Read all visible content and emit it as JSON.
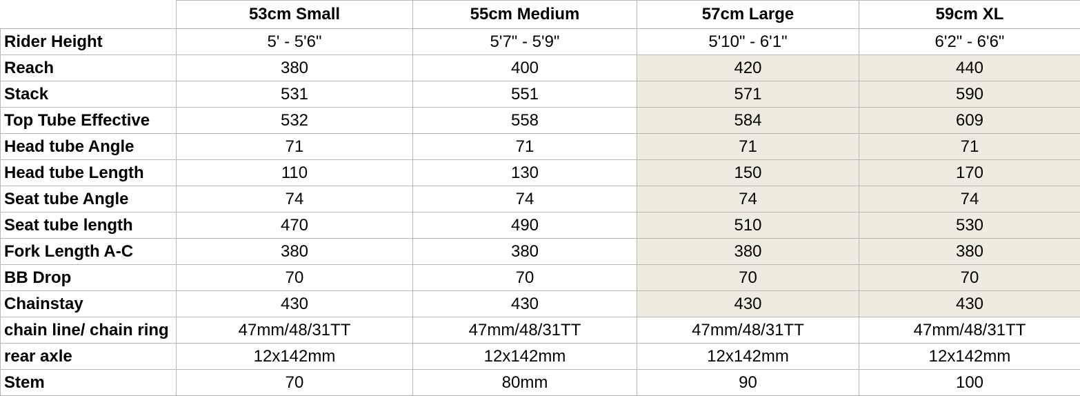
{
  "columns": [
    "",
    "53cm  Small",
    "55cm Medium",
    "57cm  Large",
    "59cm XL"
  ],
  "rows": [
    {
      "label": "Rider Height",
      "values": [
        "5' - 5'6\"",
        "5'7\" - 5'9\"",
        "5'10\" - 6'1\"",
        "6'2\" - 6'6\""
      ]
    },
    {
      "label": "Reach",
      "values": [
        "380",
        "400",
        "420",
        "440"
      ]
    },
    {
      "label": "Stack",
      "values": [
        "531",
        "551",
        "571",
        "590"
      ]
    },
    {
      "label": "Top Tube Effective",
      "values": [
        "532",
        "558",
        "584",
        "609"
      ]
    },
    {
      "label": "Head tube Angle",
      "values": [
        "71",
        "71",
        "71",
        "71"
      ]
    },
    {
      "label": "Head tube Length",
      "values": [
        "110",
        "130",
        "150",
        "170"
      ]
    },
    {
      "label": "Seat tube Angle",
      "values": [
        "74",
        "74",
        "74",
        "74"
      ]
    },
    {
      "label": "Seat tube length",
      "values": [
        "470",
        "490",
        "510",
        "530"
      ]
    },
    {
      "label": "Fork Length A-C",
      "values": [
        "380",
        "380",
        "380",
        "380"
      ]
    },
    {
      "label": "BB Drop",
      "values": [
        "70",
        "70",
        "70",
        "70"
      ]
    },
    {
      "label": "Chainstay",
      "values": [
        "430",
        "430",
        "430",
        "430"
      ]
    },
    {
      "label": "chain line/ chain ring",
      "values": [
        "47mm/48/31TT",
        "47mm/48/31TT",
        "47mm/48/31TT",
        "47mm/48/31TT"
      ]
    },
    {
      "label": "rear axle",
      "values": [
        "12x142mm",
        "12x142mm",
        "12x142mm",
        "12x142mm"
      ]
    },
    {
      "label": "Stem",
      "values": [
        "70",
        "80mm",
        "90",
        "100"
      ]
    }
  ],
  "colors": {
    "grid": "#b7b7b7",
    "shade": "#eeece1",
    "text": "#000000"
  }
}
